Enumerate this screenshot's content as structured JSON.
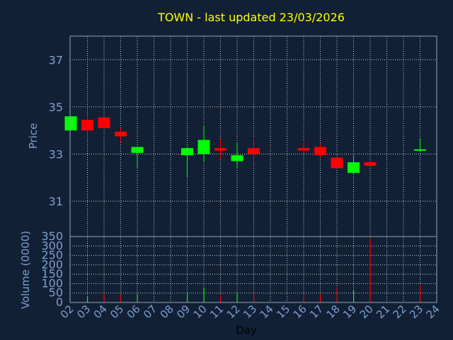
{
  "chart_data": [
    {
      "type": "candlestick",
      "title": "TOWN - last updated 23/03/2026",
      "ylabel": "Price",
      "ylim": [
        29.5,
        38
      ],
      "yticks": [
        31,
        33,
        35,
        37
      ],
      "grid": true,
      "x": [
        "02",
        "03",
        "04",
        "05",
        "06",
        "07",
        "08",
        "09",
        "10",
        "11",
        "12",
        "13",
        "14",
        "15",
        "16",
        "17",
        "18",
        "19",
        "20",
        "21",
        "22",
        "23",
        "24"
      ],
      "candles": [
        {
          "x": "02",
          "open": 34.0,
          "high": 34.6,
          "low": 34.0,
          "close": 34.6
        },
        {
          "x": "03",
          "open": 34.45,
          "high": 34.6,
          "low": 33.6,
          "close": 34.0
        },
        {
          "x": "04",
          "open": 34.55,
          "high": 34.55,
          "low": 34.1,
          "close": 34.1
        },
        {
          "x": "05",
          "open": 33.95,
          "high": 34.1,
          "low": 33.5,
          "close": 33.75
        },
        {
          "x": "06",
          "open": 33.05,
          "high": 33.3,
          "low": 32.4,
          "close": 33.3
        },
        {
          "x": "09",
          "open": 32.95,
          "high": 33.3,
          "low": 32.05,
          "close": 33.25
        },
        {
          "x": "10",
          "open": 33.0,
          "high": 34.2,
          "low": 32.65,
          "close": 33.6
        },
        {
          "x": "11",
          "open": 33.25,
          "high": 33.65,
          "low": 32.8,
          "close": 33.15
        },
        {
          "x": "12",
          "open": 32.7,
          "high": 33.5,
          "low": 32.4,
          "close": 32.95
        },
        {
          "x": "13",
          "open": 33.25,
          "high": 33.7,
          "low": 32.6,
          "close": 33.0
        },
        {
          "x": "16",
          "open": 33.25,
          "high": 33.5,
          "low": 33.05,
          "close": 33.15
        },
        {
          "x": "17",
          "open": 33.3,
          "high": 33.45,
          "low": 32.85,
          "close": 32.95
        },
        {
          "x": "18",
          "open": 32.85,
          "high": 32.85,
          "low": 32.4,
          "close": 32.4
        },
        {
          "x": "19",
          "open": 32.2,
          "high": 32.95,
          "low": 32.15,
          "close": 32.65
        },
        {
          "x": "20",
          "open": 32.65,
          "high": 32.65,
          "low": 32.45,
          "close": 32.5
        },
        {
          "x": "23",
          "open": 33.2,
          "high": 33.65,
          "low": 33.2,
          "close": 33.2
        }
      ],
      "colors": {
        "up": "#00ff00",
        "down": "#ff0000"
      }
    },
    {
      "type": "bar",
      "ylabel": "Volume (0000)",
      "xlabel": "Day",
      "ylim": [
        0,
        350
      ],
      "yticks": [
        0,
        50,
        100,
        150,
        200,
        250,
        300,
        350
      ],
      "grid": true,
      "categories": [
        "03",
        "04",
        "05",
        "06",
        "09",
        "10",
        "11",
        "12",
        "13",
        "16",
        "17",
        "18",
        "19",
        "20",
        "23"
      ],
      "values": [
        35,
        45,
        42,
        45,
        55,
        80,
        35,
        48,
        45,
        35,
        45,
        80,
        65,
        340,
        90
      ],
      "bar_colors": [
        "#00ff00",
        "#ff0000",
        "#ff0000",
        "#00ff00",
        "#00ff00",
        "#00ff00",
        "#ff0000",
        "#00ff00",
        "#ff0000",
        "#ff0000",
        "#ff0000",
        "#ff0000",
        "#00ff00",
        "#ff0000",
        "#ff0000"
      ]
    }
  ],
  "colors": {
    "background": "#112035",
    "text": "#7e9fcd",
    "title": "#ffff00"
  }
}
